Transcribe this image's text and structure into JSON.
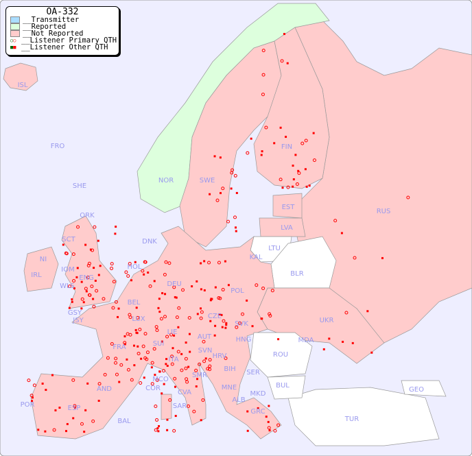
{
  "title": "OA-332",
  "legend": [
    {
      "label": "__Transmitter",
      "color": "#aaddff"
    },
    {
      "label": "__Reported",
      "color": "#ddffdd"
    },
    {
      "label": "__Not Reported",
      "color": "#ffcccc"
    },
    {
      "label": "__Listener Primary QTH",
      "marker": "circle",
      "colors": [
        "#006600",
        "#ff0000"
      ]
    },
    {
      "label": "__Listener Other QTH",
      "marker": "square",
      "colors": [
        "#006600",
        "#ff0000"
      ]
    }
  ],
  "colors": {
    "sea": "#eeeeff",
    "reported": "#ddffdd",
    "not_reported": "#ffcccc",
    "unlisted": "#ffffff",
    "marker": "#ff0000"
  },
  "countries": [
    "ISL",
    "FRO",
    "SHE",
    "ORK",
    "NOR",
    "SWE",
    "FIN",
    "EST",
    "LVA",
    "LTU",
    "KAL",
    "BLR",
    "RUS",
    "DNK",
    "HOL",
    "BEL",
    "DEU",
    "POL",
    "UKR",
    "IRL",
    "NI",
    "SCT",
    "IOM",
    "WLS",
    "ENG",
    "GSY",
    "JSY",
    "LUX",
    "CZE",
    "SVK",
    "AUT",
    "HNG",
    "MDA",
    "ROU",
    "FRA",
    "SUI",
    "LIE",
    "SVN",
    "HRV",
    "ITA",
    "BIH",
    "SER",
    "BUL",
    "MCO",
    "COR",
    "SMR",
    "MNE",
    "CVA",
    "ALB",
    "MKD",
    "AND",
    "POR",
    "ESP",
    "BAL",
    "SAR",
    "GRC",
    "TUR",
    "GEO"
  ]
}
